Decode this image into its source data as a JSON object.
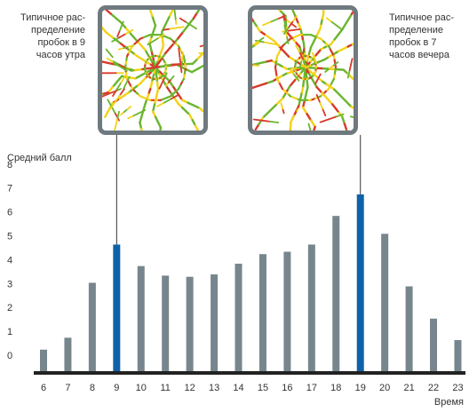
{
  "captions": {
    "morning": "Типичное рас-\nпределение\nпробок в 9\nчасов утра",
    "evening": "Типичное рас-\nпределение\nпробок в 7\nчасов вечера"
  },
  "colors": {
    "bar": "#77868d",
    "highlight": "#0f62a8",
    "baseline": "#222222",
    "frame": "#6f7a80",
    "road_green": "#6ab52e",
    "road_yellow": "#f2d21a",
    "road_red": "#d9392b"
  },
  "chart_data": {
    "type": "bar",
    "categories": [
      "6",
      "7",
      "8",
      "9",
      "10",
      "11",
      "12",
      "13",
      "14",
      "15",
      "16",
      "17",
      "18",
      "19",
      "20",
      "21",
      "22",
      "23"
    ],
    "values": [
      0.9,
      1.4,
      3.7,
      5.3,
      4.4,
      4.0,
      3.95,
      4.05,
      4.5,
      4.9,
      5.0,
      5.3,
      6.5,
      7.4,
      5.75,
      3.55,
      2.2,
      1.3
    ],
    "highlighted": [
      "9",
      "19"
    ],
    "ylabel": "Средний балл",
    "xlabel": "Время",
    "yticks": [
      0,
      1,
      2,
      3,
      4,
      5,
      6,
      7,
      8
    ],
    "ylim": [
      0,
      8
    ],
    "grid": false,
    "legend": "none"
  }
}
